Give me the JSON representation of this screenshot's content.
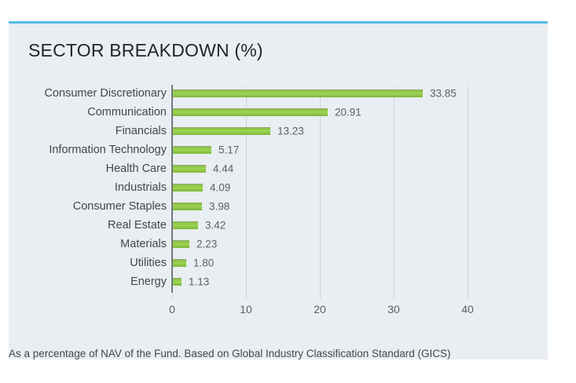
{
  "page": {
    "title": "SECTOR BREAKDOWN (%)",
    "footnote": "As a percentage of NAV of the Fund. Based on Global Industry Classification Standard (GICS)"
  },
  "colors": {
    "accent_line": "#56b9e8",
    "panel_bg": "#e9eef2",
    "bar_main": "#8dc63f",
    "bar_light": "#9ed455",
    "bar_dark": "#7fb637",
    "bar_top_edge": "#93a779",
    "grid_line": "#ccd3d9",
    "axis_line": "#73787d",
    "text_dark": "#22262a",
    "text_label": "#3f474f",
    "text_value": "#5a6169"
  },
  "chart_data": {
    "type": "bar",
    "orientation": "horizontal",
    "title": "SECTOR BREAKDOWN (%)",
    "categories": [
      "Consumer Discretionary",
      "Communication",
      "Financials",
      "Information Technology",
      "Health Care",
      "Industrials",
      "Consumer Staples",
      "Real Estate",
      "Materials",
      "Utilities",
      "Energy"
    ],
    "values": [
      33.85,
      20.91,
      13.23,
      5.17,
      4.44,
      4.09,
      3.98,
      3.42,
      2.23,
      1.8,
      1.13
    ],
    "value_labels": [
      "33.85",
      "20.91",
      "13.23",
      "5.17",
      "4.44",
      "4.09",
      "3.98",
      "3.42",
      "2.23",
      "1.80",
      "1.13"
    ],
    "xlabel": "",
    "ylabel": "",
    "xlim": [
      0,
      42
    ],
    "x_ticks": [
      0,
      10,
      20,
      30,
      40
    ],
    "grid": true,
    "legend": false
  }
}
